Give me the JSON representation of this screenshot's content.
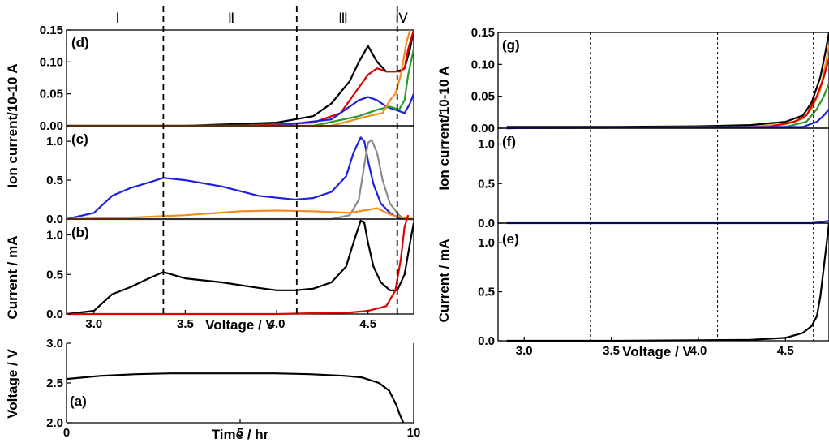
{
  "chart_data": [
    {
      "id": "a",
      "panel_label": "(a)",
      "type": "line",
      "xlabel": "Time / hr",
      "ylabel": "Voltage / V",
      "xlim": [
        0,
        10
      ],
      "ylim": [
        2.0,
        3.0
      ],
      "xticks": [
        "0",
        "5",
        "10"
      ],
      "yticks": [
        "2.0",
        "2.5",
        "3.0"
      ],
      "series": [
        {
          "color": "#000000",
          "x": [
            0,
            0.5,
            1,
            2,
            3,
            4,
            5,
            6,
            7,
            8,
            8.5,
            9,
            9.3,
            9.5,
            9.6,
            9.7
          ],
          "y": [
            2.55,
            2.57,
            2.59,
            2.61,
            2.62,
            2.62,
            2.62,
            2.62,
            2.61,
            2.59,
            2.57,
            2.5,
            2.4,
            2.22,
            2.1,
            2.0
          ]
        }
      ]
    },
    {
      "id": "b",
      "panel_label": "(b)",
      "type": "line",
      "ylabel": "Current / mA",
      "ylim": [
        0,
        1.2
      ],
      "yticks": [
        "0.0",
        "0.5",
        "1.0"
      ],
      "series": [
        {
          "color": "#000000",
          "x": [
            2.85,
            3.0,
            3.1,
            3.2,
            3.3,
            3.38,
            3.5,
            3.7,
            3.9,
            4.0,
            4.1,
            4.2,
            4.3,
            4.38,
            4.42,
            4.46,
            4.48,
            4.5,
            4.53,
            4.57,
            4.62,
            4.66,
            4.7,
            4.73,
            4.75
          ],
          "y": [
            0.0,
            0.04,
            0.25,
            0.34,
            0.45,
            0.53,
            0.45,
            0.4,
            0.33,
            0.3,
            0.3,
            0.32,
            0.4,
            0.6,
            0.9,
            1.18,
            1.15,
            0.9,
            0.6,
            0.4,
            0.3,
            0.3,
            0.5,
            0.9,
            1.15
          ]
        },
        {
          "color": "#e00000",
          "x": [
            2.85,
            3.5,
            4.0,
            4.2,
            4.4,
            4.5,
            4.6,
            4.65,
            4.68,
            4.7,
            4.72
          ],
          "y": [
            0.0,
            0.0,
            0.0,
            0.01,
            0.02,
            0.04,
            0.1,
            0.3,
            0.7,
            1.1,
            1.25
          ]
        }
      ]
    },
    {
      "id": "c",
      "panel_label": "(c)",
      "type": "line",
      "ylim": [
        0,
        1.2
      ],
      "yticks": [
        "0.0",
        "0.5",
        "1.0"
      ],
      "series": [
        {
          "color": "#1f1fe0",
          "x": [
            2.85,
            3.0,
            3.1,
            3.2,
            3.3,
            3.38,
            3.5,
            3.7,
            3.9,
            4.1,
            4.2,
            4.3,
            4.38,
            4.42,
            4.46,
            4.48,
            4.5,
            4.53,
            4.57,
            4.62,
            4.66,
            4.7,
            4.75
          ],
          "y": [
            0.0,
            0.08,
            0.3,
            0.4,
            0.47,
            0.53,
            0.5,
            0.42,
            0.3,
            0.25,
            0.27,
            0.35,
            0.55,
            0.85,
            1.05,
            1.0,
            0.75,
            0.45,
            0.2,
            0.08,
            0.02,
            0.0,
            0.0
          ]
        },
        {
          "color": "#8a8a8a",
          "x": [
            2.85,
            4.3,
            4.4,
            4.45,
            4.48,
            4.5,
            4.52,
            4.55,
            4.58,
            4.62,
            4.67,
            4.7,
            4.75
          ],
          "y": [
            0.0,
            0.0,
            0.05,
            0.25,
            0.7,
            0.98,
            1.02,
            0.85,
            0.5,
            0.2,
            0.05,
            0.0,
            0.0
          ]
        },
        {
          "color": "#f28c1e",
          "x": [
            2.85,
            3.2,
            3.5,
            3.8,
            4.0,
            4.2,
            4.4,
            4.5,
            4.55,
            4.62,
            4.7,
            4.75
          ],
          "y": [
            0.0,
            0.02,
            0.05,
            0.1,
            0.11,
            0.1,
            0.08,
            0.12,
            0.14,
            0.06,
            0.01,
            0.0
          ]
        }
      ]
    },
    {
      "id": "d",
      "panel_label": "(d)",
      "type": "line",
      "ylim": [
        0,
        0.15
      ],
      "yticks": [
        "0.00",
        "0.05",
        "0.10",
        "0.15"
      ],
      "series": [
        {
          "color": "#000000",
          "x": [
            2.85,
            3.5,
            4.0,
            4.2,
            4.3,
            4.4,
            4.45,
            4.5,
            4.55,
            4.6,
            4.65,
            4.68,
            4.7,
            4.73,
            4.75
          ],
          "y": [
            0.0,
            0.0,
            0.005,
            0.015,
            0.035,
            0.07,
            0.1,
            0.125,
            0.1,
            0.085,
            0.085,
            0.087,
            0.09,
            0.12,
            0.15
          ]
        },
        {
          "color": "#e00000",
          "x": [
            2.85,
            3.8,
            4.2,
            4.35,
            4.45,
            4.5,
            4.55,
            4.6,
            4.65,
            4.68,
            4.7,
            4.72,
            4.75
          ],
          "y": [
            0.0,
            0.0,
            0.005,
            0.02,
            0.06,
            0.08,
            0.09,
            0.085,
            0.085,
            0.085,
            0.09,
            0.12,
            0.15
          ]
        },
        {
          "color": "#1f1fe0",
          "x": [
            2.85,
            4.0,
            4.3,
            4.45,
            4.5,
            4.55,
            4.6,
            4.65,
            4.7,
            4.73,
            4.75
          ],
          "y": [
            0.0,
            0.0,
            0.01,
            0.04,
            0.045,
            0.04,
            0.03,
            0.025,
            0.02,
            0.035,
            0.05
          ]
        },
        {
          "color": "#2a9a2a",
          "x": [
            2.85,
            4.2,
            4.45,
            4.55,
            4.62,
            4.67,
            4.7,
            4.72,
            4.75
          ],
          "y": [
            0.0,
            0.0,
            0.015,
            0.025,
            0.03,
            0.025,
            0.04,
            0.08,
            0.12
          ]
        },
        {
          "color": "#f28c1e",
          "x": [
            2.85,
            4.3,
            4.5,
            4.58,
            4.62,
            4.65,
            4.68,
            4.71,
            4.73
          ],
          "y": [
            0.0,
            0.0,
            0.015,
            0.02,
            0.04,
            0.05,
            0.08,
            0.13,
            0.15
          ]
        }
      ]
    },
    {
      "id": "e",
      "panel_label": "(e)",
      "type": "line",
      "xlabel": "Voltage / V",
      "ylabel": "Current / mA",
      "xlim": [
        2.85,
        4.75
      ],
      "ylim": [
        0,
        1.2
      ],
      "xticks": [
        "3.0",
        "3.5",
        "4.0",
        "4.5"
      ],
      "yticks": [
        "0.0",
        "0.5",
        "1.0"
      ],
      "series": [
        {
          "color": "#000000",
          "x": [
            2.9,
            3.5,
            4.0,
            4.3,
            4.5,
            4.6,
            4.65,
            4.68,
            4.7,
            4.72,
            4.74,
            4.75
          ],
          "y": [
            0.0,
            0.0,
            0.005,
            0.01,
            0.03,
            0.08,
            0.15,
            0.25,
            0.45,
            0.75,
            1.05,
            1.2
          ]
        }
      ]
    },
    {
      "id": "f",
      "panel_label": "(f)",
      "type": "line",
      "ylim": [
        0,
        1.2
      ],
      "yticks": [
        "0.0",
        "0.5",
        "1.0"
      ],
      "series": [
        {
          "color": "#1f1fe0",
          "x": [
            2.9,
            4.65,
            4.7,
            4.75
          ],
          "y": [
            0.0,
            0.0,
            0.01,
            0.03
          ]
        }
      ]
    },
    {
      "id": "g",
      "panel_label": "(g)",
      "type": "line",
      "ylabel": "Ion current/10-10 A",
      "ylim": [
        0,
        0.15
      ],
      "yticks": [
        "0.00",
        "0.05",
        "0.10",
        "0.15"
      ],
      "series": [
        {
          "color": "#000000",
          "x": [
            2.9,
            3.5,
            4.0,
            4.3,
            4.5,
            4.6,
            4.65,
            4.7,
            4.73,
            4.75
          ],
          "y": [
            0.002,
            0.002,
            0.003,
            0.005,
            0.01,
            0.02,
            0.04,
            0.08,
            0.12,
            0.15
          ]
        },
        {
          "color": "#f28c1e",
          "x": [
            2.9,
            4.3,
            4.5,
            4.6,
            4.65,
            4.7,
            4.73,
            4.75
          ],
          "y": [
            0.0,
            0.002,
            0.006,
            0.015,
            0.03,
            0.06,
            0.1,
            0.13
          ]
        },
        {
          "color": "#e00000",
          "x": [
            2.9,
            4.4,
            4.55,
            4.62,
            4.68,
            4.72,
            4.75
          ],
          "y": [
            0.0,
            0.002,
            0.01,
            0.02,
            0.05,
            0.08,
            0.11
          ]
        },
        {
          "color": "#2a9a2a",
          "x": [
            2.9,
            4.5,
            4.62,
            4.68,
            4.72,
            4.75
          ],
          "y": [
            0.0,
            0.002,
            0.01,
            0.03,
            0.05,
            0.07
          ]
        },
        {
          "color": "#1f1fe0",
          "x": [
            2.9,
            4.6,
            4.68,
            4.72,
            4.75
          ],
          "y": [
            0.0,
            0.002,
            0.01,
            0.02,
            0.03
          ]
        }
      ]
    }
  ],
  "left_figure": {
    "xlim": [
      2.85,
      4.75
    ],
    "xticks": [
      "3.0",
      "3.5",
      "4.0",
      "4.5"
    ],
    "xlabel": "Voltage / V",
    "ylabel_current": "Current / mA",
    "ylabel_ion": "Ion current/10-10 A",
    "ylabel_voltage": "Voltage / V",
    "region_labels": [
      "Ⅰ",
      "Ⅱ",
      "Ⅲ",
      "Ⅳ"
    ],
    "dashed_boundaries_V": [
      3.38,
      4.11,
      4.66
    ]
  },
  "right_figure": {
    "dotted_boundaries_V": [
      3.38,
      4.11,
      4.66
    ]
  }
}
